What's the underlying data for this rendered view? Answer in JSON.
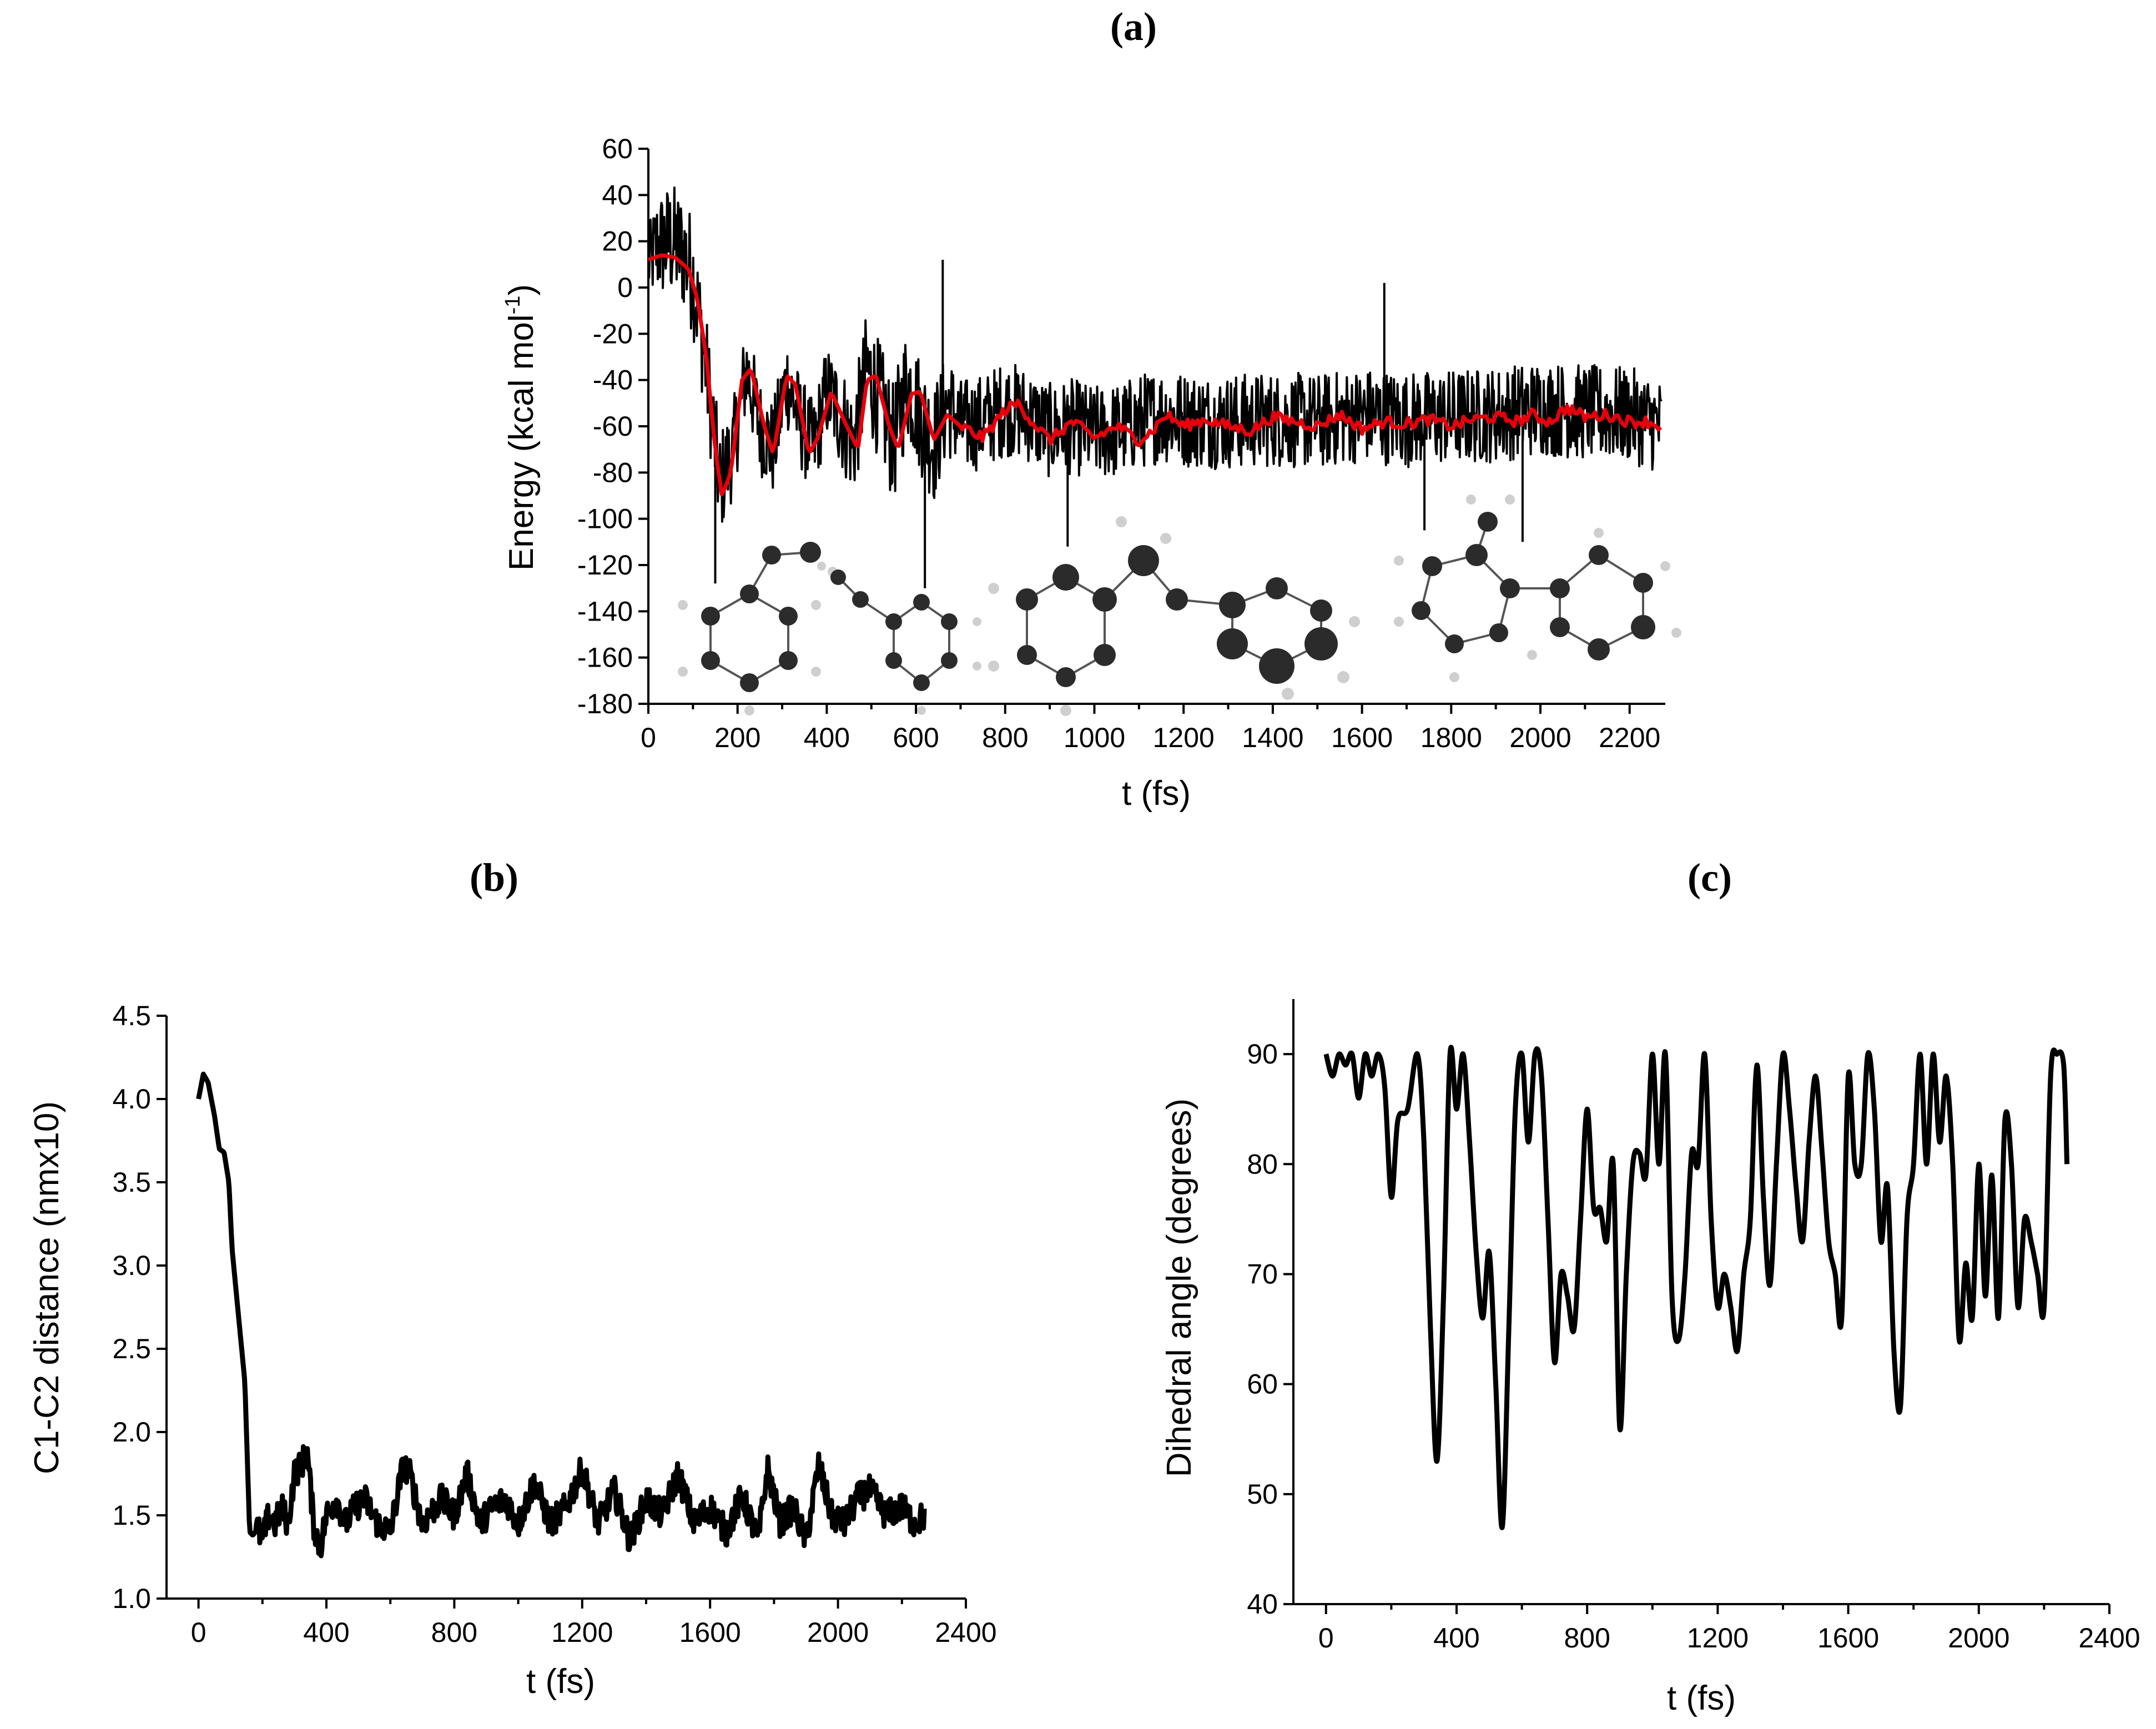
{
  "chart_data": [
    {
      "id": "a",
      "panel_label": "(a)",
      "type": "line",
      "xlabel": "t (fs)",
      "ylabel_main": "Energy (kcal mol",
      "ylabel_sup": "-1",
      "ylabel_end": ")",
      "xlim": [
        0,
        2280
      ],
      "ylim": [
        -180,
        60
      ],
      "xticks": [
        0,
        200,
        400,
        600,
        800,
        1000,
        1200,
        1400,
        1600,
        1800,
        2000,
        2200
      ],
      "yticks": [
        -180,
        -160,
        -140,
        -120,
        -100,
        -80,
        -60,
        -40,
        -20,
        0,
        20,
        40,
        60
      ],
      "series": [
        {
          "name": "Energy",
          "color": "#000000",
          "style": "noisy",
          "x": [
            0,
            20,
            50,
            80,
            100,
            130,
            160,
            190,
            220,
            250,
            280,
            310,
            340,
            370,
            400,
            430,
            460,
            490,
            520,
            550,
            580,
            610,
            640,
            670,
            700,
            750,
            800,
            850,
            900,
            950,
            1000,
            1050,
            1100,
            1150,
            1200,
            1300,
            1400,
            1500,
            1600,
            1700,
            1800,
            1900,
            2000,
            2100,
            2200,
            2270
          ],
          "y": [
            10,
            18,
            20,
            15,
            5,
            -35,
            -85,
            -70,
            -35,
            -60,
            -70,
            -40,
            -58,
            -70,
            -45,
            -55,
            -68,
            -35,
            -50,
            -68,
            -40,
            -55,
            -68,
            -50,
            -60,
            -58,
            -52,
            -55,
            -62,
            -60,
            -63,
            -62,
            -58,
            -55,
            -57,
            -58,
            -57,
            -58,
            -55,
            -57,
            -56,
            -55,
            -52,
            -54,
            -55,
            -60
          ],
          "amplitude": [
            12,
            18,
            20,
            20,
            20,
            18,
            18,
            16,
            16,
            16,
            16,
            16,
            16,
            16,
            16,
            18,
            18,
            20,
            20,
            20,
            20,
            20,
            20,
            18,
            16,
            16,
            16,
            16,
            16,
            16,
            16,
            16,
            16,
            16,
            16,
            16,
            16,
            16,
            16,
            16,
            16,
            16,
            16,
            16,
            16,
            16
          ],
          "spikes": [
            [
              620,
              -130
            ],
            [
              660,
              12
            ],
            [
              940,
              -112
            ],
            [
              1650,
              2
            ],
            [
              1740,
              -105
            ],
            [
              1960,
              -110
            ],
            [
              150,
              -128
            ]
          ]
        },
        {
          "name": "Moving average",
          "color": "#e8000b",
          "style": "smooth",
          "x": [
            0,
            30,
            60,
            90,
            110,
            130,
            150,
            165,
            185,
            210,
            230,
            260,
            280,
            310,
            330,
            360,
            380,
            410,
            440,
            470,
            490,
            510,
            540,
            560,
            590,
            610,
            640,
            670,
            700,
            750,
            800,
            830,
            860,
            900,
            950,
            1000,
            1050,
            1100,
            1130,
            1160,
            1200,
            1250,
            1300,
            1350,
            1400,
            1450,
            1500,
            1550,
            1600,
            1650,
            1700,
            1750,
            1800,
            1850,
            1900,
            1950,
            1980,
            2020,
            2060,
            2100,
            2150,
            2200,
            2240,
            2270
          ],
          "y": [
            12,
            14,
            13,
            8,
            -5,
            -30,
            -70,
            -90,
            -80,
            -40,
            -35,
            -60,
            -72,
            -38,
            -42,
            -72,
            -65,
            -45,
            -58,
            -70,
            -40,
            -38,
            -60,
            -70,
            -46,
            -45,
            -66,
            -55,
            -60,
            -65,
            -53,
            -50,
            -58,
            -66,
            -58,
            -65,
            -60,
            -66,
            -62,
            -55,
            -60,
            -57,
            -60,
            -62,
            -56,
            -58,
            -60,
            -55,
            -61,
            -58,
            -59,
            -57,
            -60,
            -57,
            -56,
            -58,
            -55,
            -58,
            -52,
            -56,
            -55,
            -58,
            -58,
            -60
          ]
        }
      ]
    },
    {
      "id": "b",
      "panel_label": "(b)",
      "type": "line",
      "xlabel": "t (fs)",
      "ylabel": "C1-C2 distance (nmx10)",
      "xlim": [
        -100,
        2400
      ],
      "ylim": [
        1.0,
        4.5
      ],
      "xticks": [
        0,
        400,
        800,
        1200,
        1600,
        2000,
        2400
      ],
      "yticks": [
        1.0,
        1.5,
        2.0,
        2.5,
        3.0,
        3.5,
        4.0,
        4.5
      ],
      "series": [
        {
          "name": "C1-C2 distance",
          "color": "#000000",
          "x": [
            0,
            15,
            30,
            50,
            65,
            80,
            95,
            105,
            115,
            130,
            145,
            160,
            170,
            185,
            200,
            220,
            240,
            260,
            280,
            300,
            320,
            340,
            360,
            380,
            400,
            430,
            460,
            490,
            520,
            560,
            600,
            640,
            660,
            700,
            760,
            800,
            840,
            880,
            920,
            960,
            1000,
            1050,
            1100,
            1150,
            1200,
            1250,
            1300,
            1350,
            1400,
            1450,
            1500,
            1550,
            1600,
            1650,
            1700,
            1750,
            1780,
            1820,
            1860,
            1900,
            1940,
            1980,
            2020,
            2060,
            2100,
            2150,
            2200,
            2240,
            2270
          ],
          "y": [
            4.0,
            4.15,
            4.1,
            3.9,
            3.7,
            3.68,
            3.5,
            3.1,
            2.9,
            2.6,
            2.3,
            1.4,
            1.38,
            1.42,
            1.35,
            1.5,
            1.45,
            1.55,
            1.45,
            1.75,
            1.8,
            1.88,
            1.45,
            1.3,
            1.5,
            1.6,
            1.45,
            1.55,
            1.6,
            1.45,
            1.4,
            1.8,
            1.75,
            1.45,
            1.6,
            1.5,
            1.75,
            1.45,
            1.55,
            1.6,
            1.45,
            1.7,
            1.45,
            1.55,
            1.78,
            1.45,
            1.65,
            1.35,
            1.6,
            1.5,
            1.75,
            1.45,
            1.55,
            1.4,
            1.62,
            1.35,
            1.78,
            1.45,
            1.55,
            1.35,
            1.8,
            1.5,
            1.45,
            1.6,
            1.65,
            1.5,
            1.55,
            1.45,
            1.5
          ],
          "noise": 0.09
        }
      ]
    },
    {
      "id": "c",
      "panel_label": "(c)",
      "type": "line",
      "xlabel": "t (fs)",
      "ylabel": "Dihedral angle (degrees)",
      "xlim": [
        -100,
        2400
      ],
      "ylim": [
        40,
        95
      ],
      "xticks": [
        0,
        400,
        800,
        1200,
        1600,
        2000,
        2400
      ],
      "yticks": [
        40,
        50,
        60,
        70,
        80,
        90
      ],
      "series": [
        {
          "name": "Dihedral angle",
          "color": "#000000",
          "x": [
            0,
            20,
            40,
            60,
            80,
            100,
            120,
            140,
            160,
            180,
            200,
            220,
            250,
            280,
            300,
            320,
            340,
            360,
            380,
            400,
            420,
            440,
            460,
            480,
            500,
            520,
            540,
            560,
            580,
            600,
            620,
            640,
            660,
            680,
            700,
            720,
            740,
            760,
            780,
            800,
            820,
            840,
            860,
            880,
            900,
            920,
            940,
            960,
            980,
            1000,
            1020,
            1040,
            1060,
            1080,
            1100,
            1120,
            1140,
            1160,
            1180,
            1200,
            1220,
            1240,
            1260,
            1280,
            1300,
            1320,
            1340,
            1360,
            1380,
            1400,
            1420,
            1440,
            1460,
            1480,
            1500,
            1520,
            1540,
            1560,
            1580,
            1600,
            1620,
            1640,
            1660,
            1680,
            1700,
            1720,
            1740,
            1760,
            1780,
            1800,
            1820,
            1840,
            1860,
            1880,
            1900,
            1920,
            1940,
            1960,
            1980,
            2000,
            2020,
            2040,
            2060,
            2080,
            2100,
            2120,
            2140,
            2160,
            2180,
            2200,
            2220,
            2240,
            2260,
            2270
          ],
          "y": [
            90,
            88,
            90,
            89,
            90,
            86,
            90,
            88,
            90,
            87,
            77,
            84,
            85,
            90,
            82,
            65,
            53,
            68,
            90,
            85,
            90,
            82,
            72,
            66,
            72,
            60,
            47,
            65,
            85,
            90,
            82,
            90,
            88,
            75,
            62,
            70,
            68,
            65,
            75,
            85,
            76,
            76,
            73,
            80,
            56,
            70,
            80,
            81,
            79,
            90,
            80,
            90,
            68,
            64,
            70,
            81,
            80,
            90,
            75,
            67,
            70,
            67,
            63,
            70,
            75,
            89,
            77,
            69,
            80,
            90,
            85,
            78,
            73,
            82,
            88,
            81,
            73,
            70,
            66,
            88,
            80,
            80,
            90,
            85,
            73,
            78,
            63,
            58,
            75,
            80,
            90,
            80,
            90,
            82,
            88,
            80,
            64,
            71,
            66,
            80,
            68,
            79,
            66,
            84,
            80,
            67,
            75,
            73,
            70,
            67,
            88,
            90,
            89,
            80
          ],
          "noise": 0
        }
      ]
    }
  ]
}
